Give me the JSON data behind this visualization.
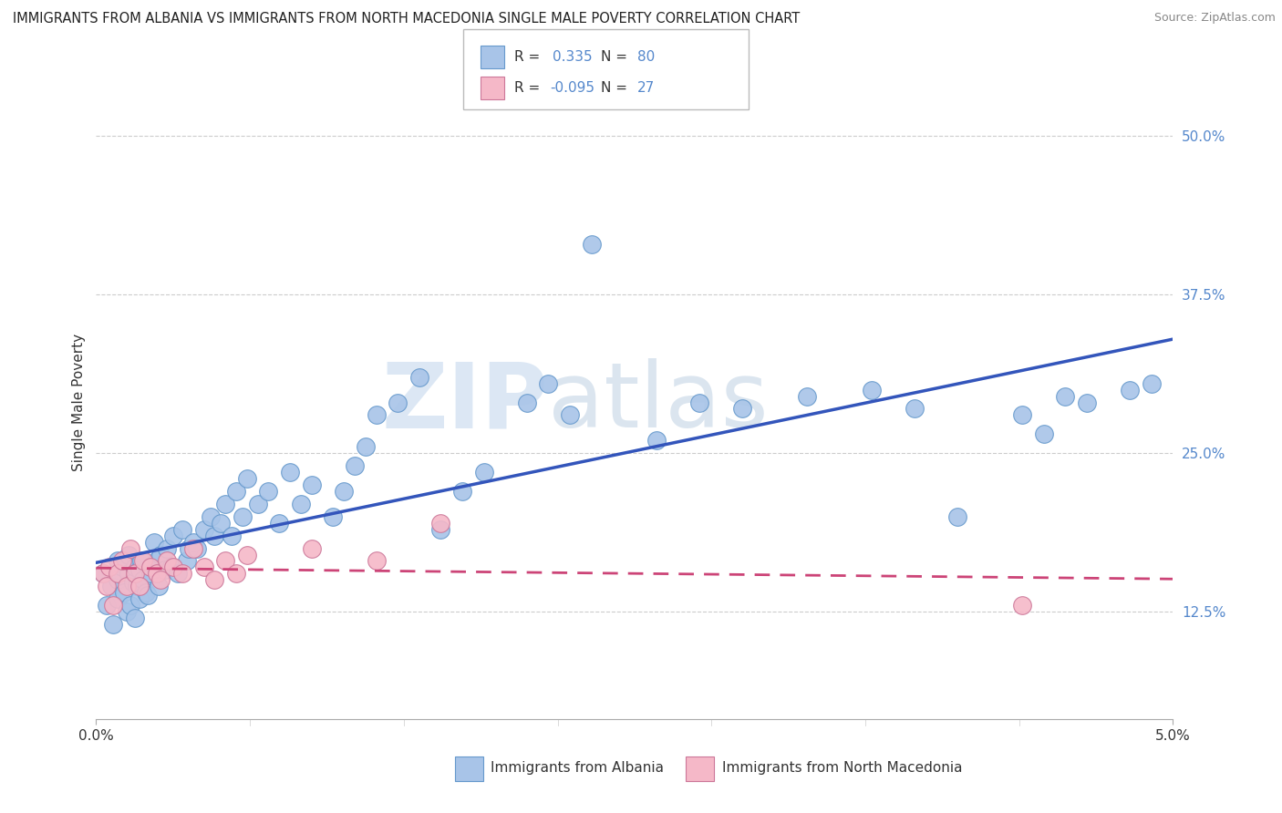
{
  "title": "IMMIGRANTS FROM ALBANIA VS IMMIGRANTS FROM NORTH MACEDONIA SINGLE MALE POVERTY CORRELATION CHART",
  "source": "Source: ZipAtlas.com",
  "ylabel": "Single Male Poverty",
  "y_ticks": [
    0.125,
    0.25,
    0.375,
    0.5
  ],
  "y_tick_labels": [
    "12.5%",
    "25.0%",
    "37.5%",
    "50.0%"
  ],
  "x_min": 0.0,
  "x_max": 0.05,
  "y_min": 0.04,
  "y_max": 0.54,
  "albania_color": "#a8c4e8",
  "albania_edge": "#6699cc",
  "macedonia_color": "#f5b8c8",
  "macedonia_edge": "#cc7799",
  "regression_albania_color": "#3355bb",
  "regression_macedonia_color": "#cc4477",
  "R_albania": "0.335",
  "N_albania": "80",
  "R_macedonia": "-0.095",
  "N_macedonia": "27",
  "watermark_zip": "ZIP",
  "watermark_atlas": "atlas",
  "legend_label_albania": "Immigrants from Albania",
  "legend_label_macedonia": "Immigrants from North Macedonia",
  "tick_color": "#5588cc",
  "albania_x": [
    0.0003,
    0.0005,
    0.0007,
    0.0008,
    0.001,
    0.001,
    0.001,
    0.0012,
    0.0013,
    0.0014,
    0.0015,
    0.0015,
    0.0016,
    0.0017,
    0.0018,
    0.0018,
    0.0019,
    0.002,
    0.002,
    0.0021,
    0.0022,
    0.0023,
    0.0024,
    0.0025,
    0.0027,
    0.0028,
    0.0029,
    0.003,
    0.0032,
    0.0033,
    0.0035,
    0.0036,
    0.0038,
    0.004,
    0.0042,
    0.0043,
    0.0045,
    0.0047,
    0.005,
    0.0053,
    0.0055,
    0.0058,
    0.006,
    0.0063,
    0.0065,
    0.0068,
    0.007,
    0.0075,
    0.008,
    0.0085,
    0.009,
    0.0095,
    0.01,
    0.011,
    0.0115,
    0.012,
    0.0125,
    0.013,
    0.014,
    0.015,
    0.016,
    0.017,
    0.018,
    0.02,
    0.021,
    0.022,
    0.023,
    0.026,
    0.028,
    0.03,
    0.033,
    0.036,
    0.038,
    0.04,
    0.043,
    0.044,
    0.045,
    0.046,
    0.048,
    0.049
  ],
  "albania_y": [
    0.155,
    0.13,
    0.145,
    0.115,
    0.165,
    0.15,
    0.135,
    0.16,
    0.14,
    0.125,
    0.155,
    0.17,
    0.13,
    0.148,
    0.12,
    0.16,
    0.145,
    0.135,
    0.158,
    0.165,
    0.15,
    0.14,
    0.138,
    0.155,
    0.18,
    0.165,
    0.145,
    0.17,
    0.158,
    0.175,
    0.16,
    0.185,
    0.155,
    0.19,
    0.165,
    0.175,
    0.18,
    0.175,
    0.19,
    0.2,
    0.185,
    0.195,
    0.21,
    0.185,
    0.22,
    0.2,
    0.23,
    0.21,
    0.22,
    0.195,
    0.235,
    0.21,
    0.225,
    0.2,
    0.22,
    0.24,
    0.255,
    0.28,
    0.29,
    0.31,
    0.19,
    0.22,
    0.235,
    0.29,
    0.305,
    0.28,
    0.415,
    0.26,
    0.29,
    0.285,
    0.295,
    0.3,
    0.285,
    0.2,
    0.28,
    0.265,
    0.295,
    0.29,
    0.3,
    0.305
  ],
  "macedonia_x": [
    0.0003,
    0.0005,
    0.0006,
    0.0008,
    0.001,
    0.0012,
    0.0014,
    0.0016,
    0.0018,
    0.002,
    0.0022,
    0.0025,
    0.0028,
    0.003,
    0.0033,
    0.0036,
    0.004,
    0.0045,
    0.005,
    0.0055,
    0.006,
    0.0065,
    0.007,
    0.01,
    0.013,
    0.016,
    0.043
  ],
  "macedonia_y": [
    0.155,
    0.145,
    0.16,
    0.13,
    0.155,
    0.165,
    0.145,
    0.175,
    0.155,
    0.145,
    0.165,
    0.16,
    0.155,
    0.15,
    0.165,
    0.16,
    0.155,
    0.175,
    0.16,
    0.15,
    0.165,
    0.155,
    0.17,
    0.175,
    0.165,
    0.195,
    0.13
  ]
}
